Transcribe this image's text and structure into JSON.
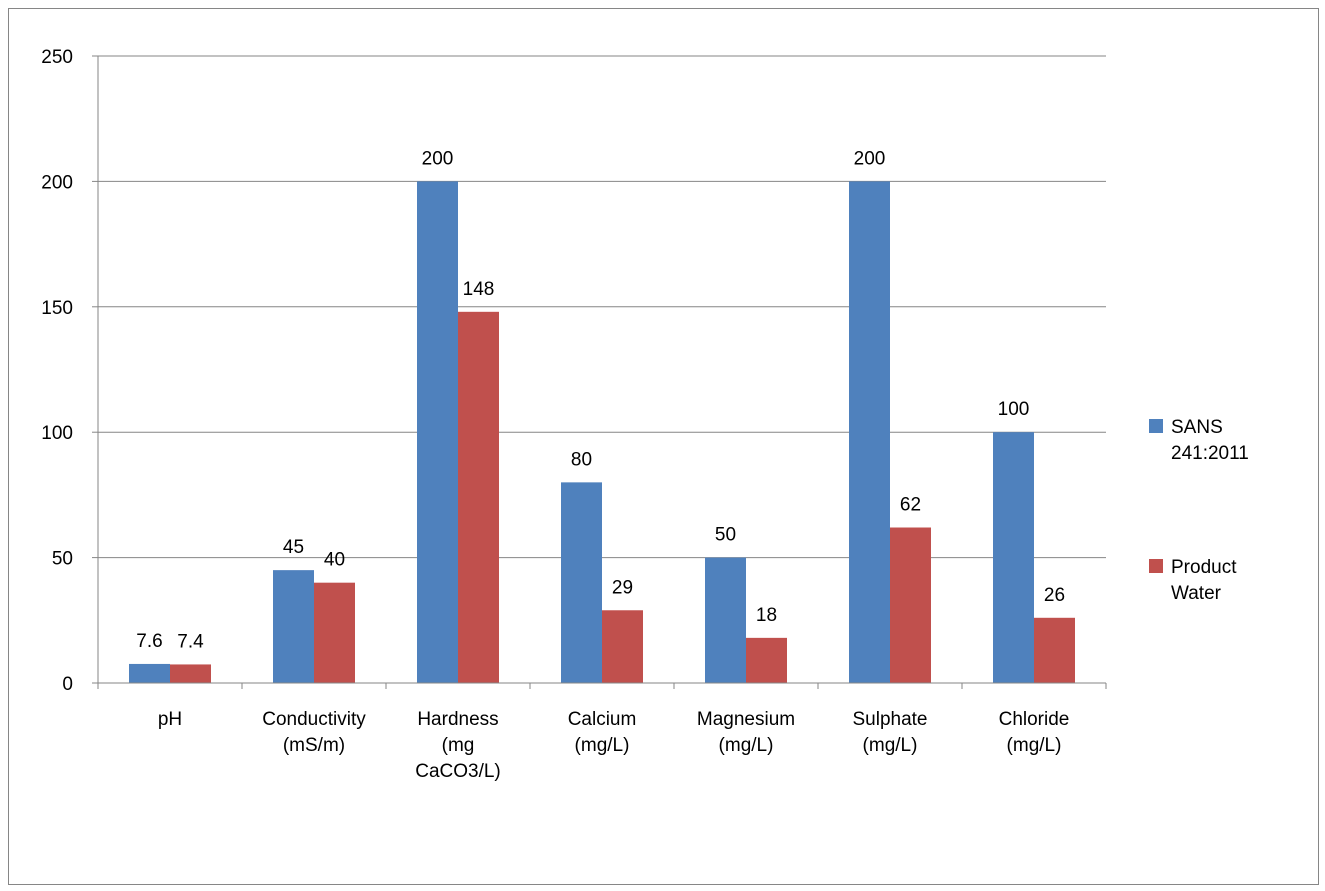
{
  "chart_data": {
    "type": "bar",
    "categories": [
      [
        "pH"
      ],
      [
        "Conductivity",
        "(mS/m)"
      ],
      [
        "Hardness",
        "(mg",
        "CaCO3/L)"
      ],
      [
        "Calcium",
        "(mg/L)"
      ],
      [
        "Magnesium",
        "(mg/L)"
      ],
      [
        "Sulphate",
        "(mg/L)"
      ],
      [
        "Chloride",
        "(mg/L)"
      ]
    ],
    "series": [
      {
        "name": [
          "SANS",
          "241:2011"
        ],
        "color": "#4F81BD",
        "values": [
          7.6,
          45,
          200,
          80,
          50,
          200,
          100
        ]
      },
      {
        "name": [
          "Product",
          "Water"
        ],
        "color": "#C0504D",
        "values": [
          7.4,
          40,
          148,
          29,
          18,
          62,
          26
        ]
      }
    ],
    "ylim": [
      0,
      250
    ],
    "yticks": [
      0,
      50,
      100,
      150,
      200,
      250
    ],
    "grid": true,
    "gridColor": "#868686",
    "legend": "right",
    "title": "",
    "xlabel": "",
    "ylabel": ""
  }
}
